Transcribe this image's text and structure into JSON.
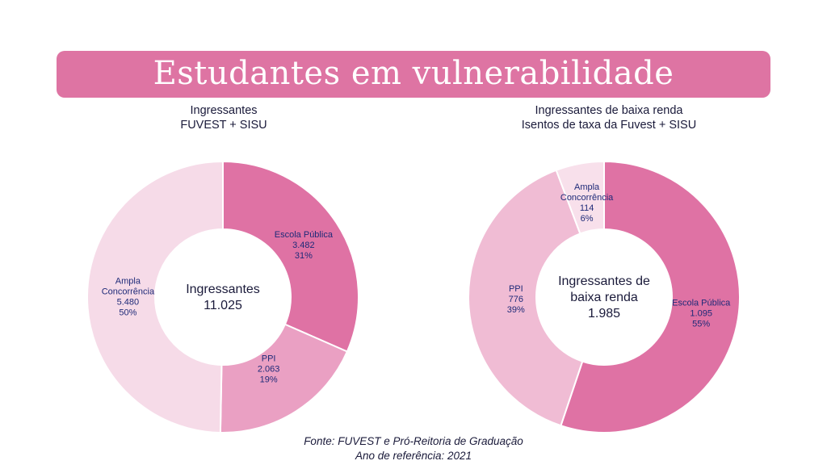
{
  "title": "Estudantes em vulnerabilidade",
  "colors": {
    "banner": "#de74a3"
  },
  "chart_data": [
    {
      "type": "pie",
      "style": "donut",
      "title_lines": [
        "Ingressantes",
        "FUVEST + SISU"
      ],
      "center_lines": [
        "Ingressantes",
        "11.025"
      ],
      "total": 11025,
      "slices": [
        {
          "name": "Escola Pública",
          "name_lines": [
            "Escola Pública"
          ],
          "value": 3482,
          "value_label": "3.482",
          "percent": 31,
          "percent_label": "31%",
          "color": "#df72a4"
        },
        {
          "name": "PPI",
          "name_lines": [
            "PPI"
          ],
          "value": 2063,
          "value_label": "2.063",
          "percent": 19,
          "percent_label": "19%",
          "color": "#eaa0c3"
        },
        {
          "name": "Ampla Concorrência",
          "name_lines": [
            "Ampla",
            "Concorrência"
          ],
          "value": 5480,
          "value_label": "5.480",
          "percent": 50,
          "percent_label": "50%",
          "color": "#f6dbe8"
        }
      ]
    },
    {
      "type": "pie",
      "style": "donut",
      "title_lines": [
        "Ingressantes de baixa renda",
        "Isentos de taxa da Fuvest + SISU"
      ],
      "center_lines": [
        "Ingressantes de",
        "baixa renda",
        "1.985"
      ],
      "total": 1985,
      "slices": [
        {
          "name": "Escola Pública",
          "name_lines": [
            "Escola Pública"
          ],
          "value": 1095,
          "value_label": "1.095",
          "percent": 55,
          "percent_label": "55%",
          "color": "#df72a4"
        },
        {
          "name": "PPI",
          "name_lines": [
            "PPI"
          ],
          "value": 776,
          "value_label": "776",
          "percent": 39,
          "percent_label": "39%",
          "color": "#f0bcd4"
        },
        {
          "name": "Ampla Concorrência",
          "name_lines": [
            "Ampla",
            "Concorrência"
          ],
          "value": 114,
          "value_label": "114",
          "percent": 6,
          "percent_label": "6%",
          "color": "#f8e0eb"
        }
      ]
    }
  ],
  "source_lines": [
    "Fonte: FUVEST e Pró-Reitoria de Graduação",
    "Ano de referência: 2021"
  ]
}
